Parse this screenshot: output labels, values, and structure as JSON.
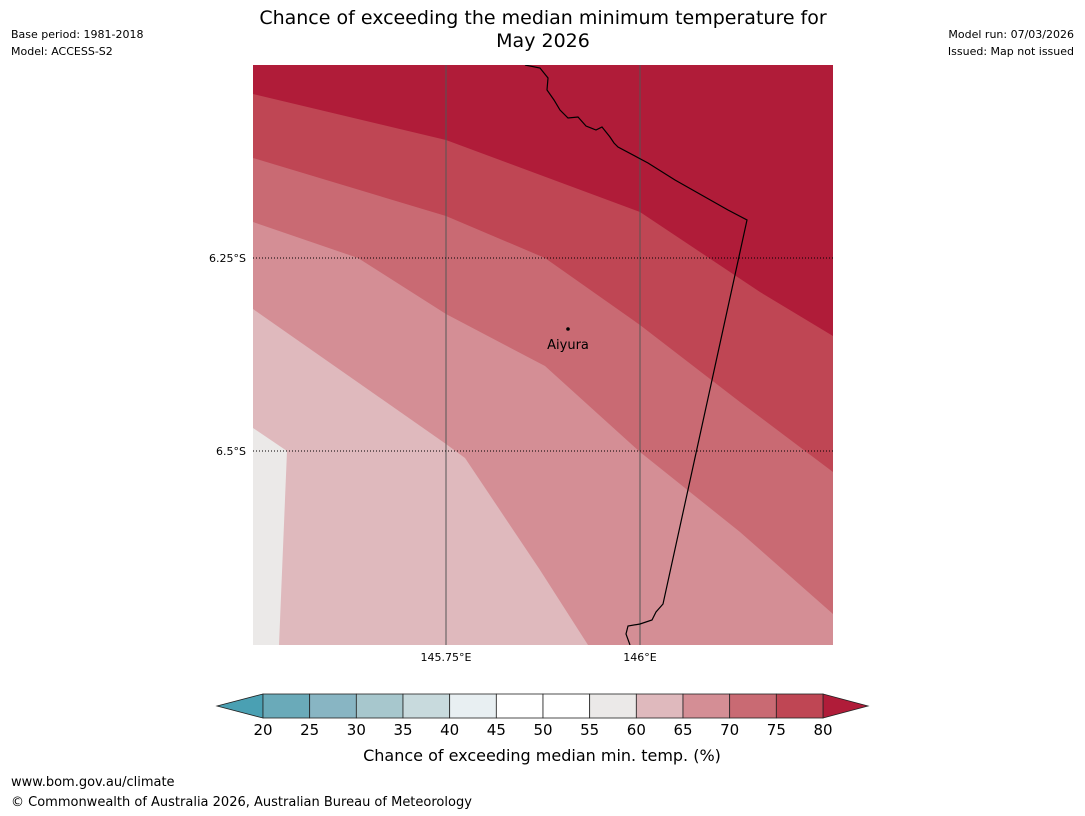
{
  "header": {
    "title_line1": "Chance of exceeding the median minimum temperature for",
    "title_line2": "May 2026",
    "base_period": "Base period: 1981-2018",
    "model": "Model: ACCESS-S2",
    "model_run": "Model run: 07/03/2026",
    "issued": "Issued: Map not issued"
  },
  "map": {
    "lat_labels": [
      "6.25°S",
      "6.5°S"
    ],
    "lon_labels": [
      "145.75°E",
      "146°E"
    ],
    "place": {
      "name": "Aiyura"
    },
    "colors": {
      "band_55_60": "#ebe9e8",
      "band_60_65": "#dfb9bd",
      "band_65_70": "#d48e95",
      "band_70_75": "#c96a73",
      "band_75_80": "#bf4654",
      "band_80_plus": "#b01c39"
    }
  },
  "colorbar": {
    "ticks": [
      "20",
      "25",
      "30",
      "35",
      "40",
      "45",
      "50",
      "55",
      "60",
      "65",
      "70",
      "75",
      "80"
    ],
    "bins": [
      {
        "range": "20-25",
        "color": "#6aaab9"
      },
      {
        "range": "25-30",
        "color": "#88b5c3"
      },
      {
        "range": "30-35",
        "color": "#a7c7cd"
      },
      {
        "range": "35-40",
        "color": "#c8dadd"
      },
      {
        "range": "40-45",
        "color": "#e8eff2"
      },
      {
        "range": "45-50",
        "color": "#ffffff"
      },
      {
        "range": "50-55",
        "color": "#ffffff"
      },
      {
        "range": "55-60",
        "color": "#ebe9e8"
      },
      {
        "range": "60-65",
        "color": "#dfb9bd"
      },
      {
        "range": "65-70",
        "color": "#d48e95"
      },
      {
        "range": "70-75",
        "color": "#c96a73"
      },
      {
        "range": "75-80",
        "color": "#bf4654"
      }
    ],
    "under_color": "#4aa0b3",
    "over_color": "#b01c39",
    "label": "Chance of exceeding median min. temp. (%)"
  },
  "footer": {
    "url": "www.bom.gov.au/climate",
    "copyright": "© Commonwealth of Australia 2026, Australian Bureau of Meteorology"
  }
}
